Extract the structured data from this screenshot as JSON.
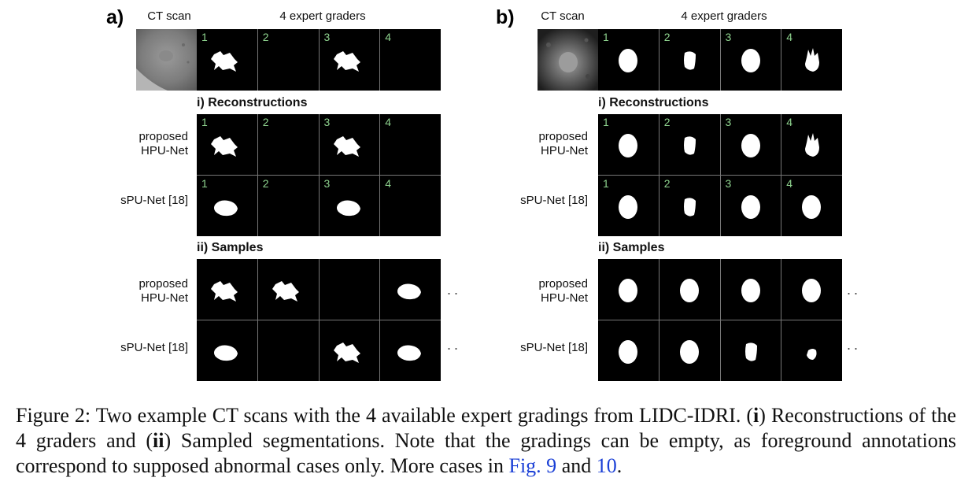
{
  "panels": [
    {
      "label": "a)",
      "ct_header": "CT scan",
      "expert_header": "4 expert graders",
      "expert_numbers": [
        "1",
        "2",
        "3",
        "4"
      ],
      "section_reconstructions": "i) Reconstructions",
      "section_samples": "ii) Samples",
      "row_proposed": [
        "proposed",
        "HPU-Net"
      ],
      "row_spunet": "sPU-Net [18]",
      "ellipsis": "..",
      "masks": {
        "experts": [
          "star",
          "",
          "star",
          ""
        ],
        "recon_proposed": [
          "star",
          "",
          "star",
          ""
        ],
        "recon_spunet": [
          "blob",
          "",
          "blob",
          ""
        ],
        "samples_proposed": [
          "star",
          "star",
          "",
          "blob"
        ],
        "samples_spunet": [
          "blob",
          "",
          "star",
          "blob"
        ]
      }
    },
    {
      "label": "b)",
      "ct_header": "CT scan",
      "expert_header": "4 expert graders",
      "expert_numbers": [
        "1",
        "2",
        "3",
        "4"
      ],
      "section_reconstructions": "i) Reconstructions",
      "section_samples": "ii) Samples",
      "row_proposed": [
        "proposed",
        "HPU-Net"
      ],
      "row_spunet": "sPU-Net [18]",
      "ellipsis": "..",
      "masks": {
        "experts": [
          "oval",
          "narrow",
          "oval",
          "spiky"
        ],
        "recon_proposed": [
          "oval",
          "narrow",
          "oval",
          "spiky"
        ],
        "recon_spunet": [
          "oval",
          "narrow",
          "oval",
          "oval"
        ],
        "samples_proposed": [
          "oval",
          "oval",
          "oval",
          "oval"
        ],
        "samples_spunet": [
          "oval",
          "oval",
          "narrow",
          "small"
        ]
      }
    }
  ],
  "caption": {
    "part1": "Figure 2: Two example CT scans with the 4 available expert gradings from LIDC-IDRI. (",
    "bold1": "i",
    "part2": ") Reconstructions of the 4 graders and (",
    "bold2": "ii",
    "part3": ") Sampled segmentations. Note that the gradings can be empty, as foreground annotations correspond to supposed abnormal cases only. More cases in ",
    "ref1": "Fig. 9",
    "part4": " and ",
    "ref2": "10",
    "part5": "."
  }
}
